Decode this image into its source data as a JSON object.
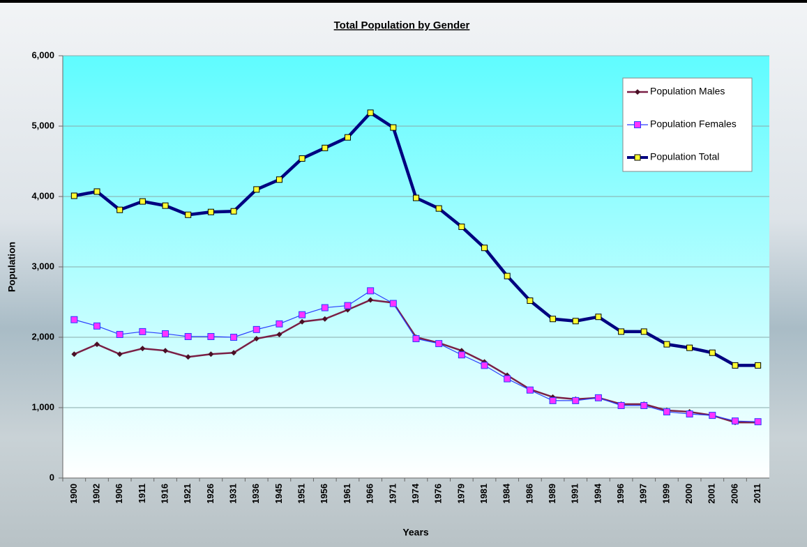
{
  "chart_data": {
    "type": "line",
    "title": "Total Population by Gender",
    "x_label": "Years",
    "y_label": "Population",
    "categories": [
      "1900",
      "1902",
      "1906",
      "1911",
      "1916",
      "1921",
      "1926",
      "1931",
      "1936",
      "1945",
      "1951",
      "1956",
      "1961",
      "1966",
      "1971",
      "1974",
      "1976",
      "1979",
      "1981",
      "1984",
      "1986",
      "1989",
      "1991",
      "1994",
      "1996",
      "1997",
      "1999",
      "2000",
      "2001",
      "2006",
      "2011"
    ],
    "series": [
      {
        "name": "Population Males",
        "color": "#7a1f45",
        "marker_color": "#4a0f25",
        "line_width": 2.5,
        "values": [
          1760,
          1900,
          1760,
          1840,
          1810,
          1720,
          1760,
          1780,
          1980,
          2040,
          2220,
          2260,
          2390,
          2530,
          2490,
          2000,
          1920,
          1810,
          1650,
          1460,
          1260,
          1150,
          1120,
          1140,
          1050,
          1050,
          960,
          940,
          890,
          790,
          790
        ]
      },
      {
        "name": "Population Females",
        "color": "#2a3cff",
        "marker_color": "#ff33ff",
        "line_width": 1.2,
        "values": [
          2250,
          2160,
          2040,
          2080,
          2050,
          2010,
          2010,
          2000,
          2110,
          2190,
          2320,
          2420,
          2450,
          2660,
          2480,
          1980,
          1910,
          1750,
          1600,
          1410,
          1250,
          1100,
          1100,
          1140,
          1030,
          1030,
          940,
          910,
          890,
          810,
          800
        ]
      },
      {
        "name": "Population Total",
        "color": "#000080",
        "marker_color": "#ffff33",
        "line_width": 4.5,
        "values": [
          4010,
          4070,
          3810,
          3930,
          3870,
          3740,
          3780,
          3790,
          4100,
          4240,
          4540,
          4690,
          4840,
          5190,
          4980,
          3980,
          3830,
          3570,
          3270,
          2870,
          2520,
          2260,
          2230,
          2290,
          2080,
          2080,
          1900,
          1850,
          1780,
          1600,
          1600
        ]
      }
    ],
    "ylim": [
      0,
      6000
    ],
    "yticks": [
      0,
      {
        "value": 1000,
        "label": "1,000"
      },
      {
        "value": 2000,
        "label": "2,000"
      },
      {
        "value": 3000,
        "label": "3,000"
      },
      {
        "value": 4000,
        "label": "4,000"
      },
      {
        "value": 5000,
        "label": "5,000"
      },
      {
        "value": 6000,
        "label": "6,000"
      }
    ],
    "grid": true,
    "legend": "upper right"
  }
}
